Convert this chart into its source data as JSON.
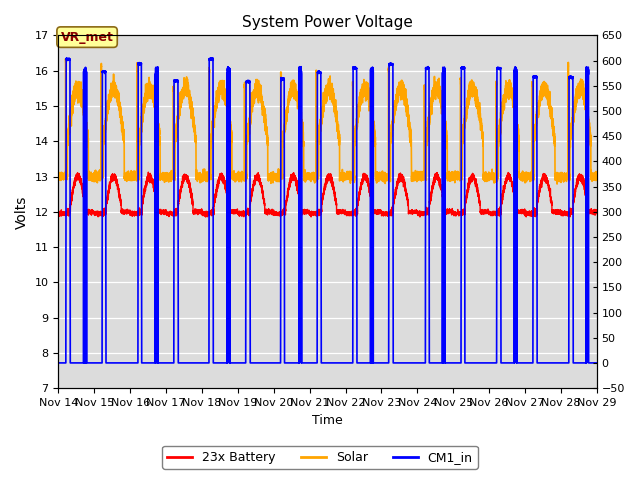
{
  "title": "System Power Voltage",
  "xlabel": "Time",
  "ylabel": "Volts",
  "ylim_left": [
    7.0,
    17.0
  ],
  "ylim_right": [
    -50,
    650
  ],
  "yticks_left": [
    7.0,
    8.0,
    9.0,
    10.0,
    11.0,
    12.0,
    13.0,
    14.0,
    15.0,
    16.0,
    17.0
  ],
  "yticks_right": [
    -50,
    0,
    50,
    100,
    150,
    200,
    250,
    300,
    350,
    400,
    450,
    500,
    550,
    600,
    650
  ],
  "xtick_labels": [
    "Nov 14",
    "Nov 15",
    "Nov 16",
    "Nov 17",
    "Nov 18",
    "Nov 19",
    "Nov 20",
    "Nov 21",
    "Nov 22",
    "Nov 23",
    "Nov 24",
    "Nov 25",
    "Nov 26",
    "Nov 27",
    "Nov 28",
    "Nov 29"
  ],
  "annotation_text": "VR_met",
  "annotation_color": "#8B0000",
  "annotation_bg": "#FFFF99",
  "annotation_border": "#8B6914",
  "plot_bg": "#DCDCDC",
  "line_colors": {
    "battery": "#FF0000",
    "solar": "#FFA500",
    "cm1": "#0000FF"
  },
  "line_widths": {
    "battery": 1.0,
    "solar": 1.2,
    "cm1": 1.2
  },
  "legend_labels": [
    "23x Battery",
    "Solar",
    "CM1_in"
  ],
  "n_days": 15,
  "seed": 42
}
